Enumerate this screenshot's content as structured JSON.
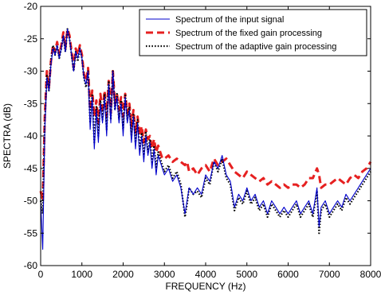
{
  "chart_data": {
    "type": "line",
    "title": "",
    "xlabel": "FREQUENCY (Hz)",
    "ylabel": "SPECTRA (dB)",
    "xlim": [
      0,
      8000
    ],
    "ylim": [
      -60,
      -20
    ],
    "x_ticks": [
      0,
      1000,
      2000,
      3000,
      4000,
      5000,
      6000,
      7000,
      8000
    ],
    "y_ticks": [
      -60,
      -55,
      -50,
      -45,
      -40,
      -35,
      -30,
      -25,
      -20
    ],
    "x_tick_labels": [
      "0",
      "1000",
      "2000",
      "3000",
      "4000",
      "5000",
      "6000",
      "7000",
      "8000"
    ],
    "y_tick_labels": [
      "-60",
      "-55",
      "-50",
      "-45",
      "-40",
      "-35",
      "-30",
      "-25",
      "-20"
    ],
    "grid": false,
    "legend_position": "top-right",
    "series": [
      {
        "name": "Spectrum of the input signal",
        "color": "#0000cc",
        "style": "solid",
        "x": [
          0,
          50,
          100,
          150,
          200,
          250,
          300,
          350,
          400,
          450,
          500,
          550,
          600,
          650,
          700,
          750,
          800,
          850,
          900,
          950,
          1000,
          1050,
          1100,
          1150,
          1200,
          1250,
          1300,
          1350,
          1400,
          1450,
          1500,
          1550,
          1600,
          1650,
          1700,
          1750,
          1800,
          1850,
          1900,
          1950,
          2000,
          2050,
          2100,
          2150,
          2200,
          2250,
          2300,
          2350,
          2400,
          2450,
          2500,
          2550,
          2600,
          2650,
          2700,
          2750,
          2800,
          2850,
          2900,
          2950,
          3000,
          3100,
          3200,
          3300,
          3400,
          3500,
          3550,
          3600,
          3700,
          3800,
          3900,
          4000,
          4100,
          4200,
          4300,
          4400,
          4500,
          4600,
          4700,
          4800,
          4900,
          5000,
          5100,
          5200,
          5300,
          5400,
          5500,
          5600,
          5700,
          5800,
          5900,
          6000,
          6100,
          6200,
          6300,
          6400,
          6500,
          6600,
          6700,
          6750,
          6800,
          6900,
          7000,
          7100,
          7200,
          7300,
          7400,
          7500,
          7600,
          7700,
          7800,
          7900,
          8000
        ],
        "y": [
          -50,
          -57.5,
          -39,
          -31,
          -33,
          -29,
          -26.5,
          -27.5,
          -26,
          -28,
          -26.5,
          -24.5,
          -27,
          -23.5,
          -25,
          -27.5,
          -30,
          -27,
          -28,
          -26.5,
          -28,
          -31,
          -32,
          -30,
          -39,
          -34,
          -42,
          -36,
          -41,
          -35,
          -38,
          -34,
          -40,
          -32,
          -38,
          -30,
          -36,
          -34,
          -38,
          -35,
          -40,
          -34,
          -38,
          -36,
          -41,
          -37,
          -42,
          -38,
          -43,
          -40,
          -44,
          -40,
          -43,
          -41,
          -45,
          -42,
          -46,
          -43,
          -44,
          -45,
          -46,
          -45,
          -47,
          -46,
          -48,
          -52,
          -50,
          -48,
          -49,
          -48,
          -49,
          -46,
          -47,
          -44,
          -45,
          -43,
          -46,
          -47,
          -51,
          -49,
          -50,
          -48,
          -50,
          -49,
          -51,
          -50,
          -52,
          -50,
          -51,
          -52,
          -51,
          -52,
          -51,
          -50,
          -52,
          -51,
          -50,
          -52,
          -48,
          -54,
          -51,
          -50,
          -52,
          -51,
          -50,
          -51,
          -49,
          -50,
          -49,
          -48,
          -47,
          -46,
          -45
        ]
      },
      {
        "name": "Spectrum of the fixed gain processing",
        "color": "#e62020",
        "style": "dashed",
        "x": [
          0,
          50,
          100,
          150,
          200,
          250,
          300,
          350,
          400,
          450,
          500,
          550,
          600,
          650,
          700,
          750,
          800,
          850,
          900,
          950,
          1000,
          1050,
          1100,
          1150,
          1200,
          1250,
          1300,
          1350,
          1400,
          1450,
          1500,
          1550,
          1600,
          1650,
          1700,
          1750,
          1800,
          1850,
          1900,
          1950,
          2000,
          2050,
          2100,
          2150,
          2200,
          2250,
          2300,
          2350,
          2400,
          2450,
          2500,
          2550,
          2600,
          2650,
          2700,
          2750,
          2800,
          2850,
          2900,
          2950,
          3000,
          3100,
          3200,
          3300,
          3400,
          3500,
          3550,
          3600,
          3700,
          3800,
          3900,
          4000,
          4100,
          4200,
          4300,
          4400,
          4500,
          4600,
          4700,
          4800,
          4900,
          5000,
          5100,
          5200,
          5300,
          5400,
          5500,
          5600,
          5700,
          5800,
          5900,
          6000,
          6100,
          6200,
          6300,
          6400,
          6500,
          6600,
          6700,
          6750,
          6800,
          6900,
          7000,
          7100,
          7200,
          7300,
          7400,
          7500,
          7600,
          7700,
          7800,
          7900,
          8000
        ],
        "y": [
          -48.5,
          -50,
          -37,
          -30,
          -32.5,
          -28.5,
          -26,
          -27,
          -25.5,
          -27.5,
          -26,
          -24,
          -26.5,
          -23.5,
          -24.5,
          -27,
          -29.5,
          -26.5,
          -27.5,
          -26,
          -27.5,
          -30.5,
          -31.5,
          -29.5,
          -36,
          -33,
          -37,
          -34.5,
          -38,
          -33.5,
          -36.5,
          -33,
          -37,
          -31.5,
          -36.5,
          -30,
          -35,
          -33.5,
          -36,
          -34,
          -37,
          -33.5,
          -36.5,
          -35,
          -38.5,
          -36,
          -39.5,
          -37,
          -40,
          -38.5,
          -41,
          -39,
          -40.5,
          -40,
          -42,
          -40.5,
          -42.5,
          -41.5,
          -42.5,
          -43.5,
          -43.5,
          -43,
          -44,
          -43.5,
          -44,
          -44.5,
          -44,
          -45.5,
          -45,
          -46,
          -45,
          -44.5,
          -45.5,
          -43.5,
          -44.5,
          -44,
          -43.5,
          -44.5,
          -45.5,
          -46,
          -46.5,
          -45.5,
          -46,
          -46.5,
          -47,
          -46.5,
          -47.5,
          -47,
          -47.5,
          -48,
          -47.5,
          -48,
          -47.5,
          -47.5,
          -48,
          -47.5,
          -46.5,
          -46.5,
          -45,
          -46,
          -48,
          -47.5,
          -47.5,
          -47,
          -46.5,
          -47,
          -47.5,
          -46.5,
          -46,
          -46.5,
          -45.5,
          -45,
          -44
        ]
      },
      {
        "name": "Spectrum of the adaptive gain processing",
        "color": "#000000",
        "style": "dotted",
        "x": [
          0,
          50,
          100,
          150,
          200,
          250,
          300,
          350,
          400,
          450,
          500,
          550,
          600,
          650,
          700,
          750,
          800,
          850,
          900,
          950,
          1000,
          1050,
          1100,
          1150,
          1200,
          1250,
          1300,
          1350,
          1400,
          1450,
          1500,
          1550,
          1600,
          1650,
          1700,
          1750,
          1800,
          1850,
          1900,
          1950,
          2000,
          2050,
          2100,
          2150,
          2200,
          2250,
          2300,
          2350,
          2400,
          2450,
          2500,
          2550,
          2600,
          2650,
          2700,
          2750,
          2800,
          2850,
          2900,
          2950,
          3000,
          3100,
          3200,
          3300,
          3400,
          3500,
          3550,
          3600,
          3700,
          3800,
          3900,
          4000,
          4100,
          4200,
          4300,
          4400,
          4500,
          4600,
          4700,
          4800,
          4900,
          5000,
          5100,
          5200,
          5300,
          5400,
          5500,
          5600,
          5700,
          5800,
          5900,
          6000,
          6100,
          6200,
          6300,
          6400,
          6500,
          6600,
          6700,
          6750,
          6800,
          6900,
          7000,
          7100,
          7200,
          7300,
          7400,
          7500,
          7600,
          7700,
          7800,
          7900,
          8000
        ],
        "y": [
          -50,
          -52,
          -38,
          -30.5,
          -33,
          -28.5,
          -26,
          -27.5,
          -26,
          -28,
          -26.5,
          -24.5,
          -27,
          -23.5,
          -25,
          -27.5,
          -30,
          -27,
          -28.5,
          -26.5,
          -28,
          -31,
          -32.5,
          -30,
          -38,
          -33.5,
          -41,
          -35.5,
          -40,
          -34.5,
          -37.5,
          -33.5,
          -39,
          -31.5,
          -37.5,
          -30,
          -36,
          -33.5,
          -37.5,
          -34.5,
          -39,
          -33.5,
          -37.5,
          -35.5,
          -40,
          -36.5,
          -41,
          -37.5,
          -42,
          -39.5,
          -43,
          -39.5,
          -42.5,
          -40.5,
          -44,
          -41.5,
          -45,
          -42.5,
          -43.5,
          -44.5,
          -45.5,
          -44.5,
          -46.5,
          -45.5,
          -47.5,
          -52.5,
          -50.5,
          -48,
          -49,
          -48.5,
          -49.5,
          -46.5,
          -47.5,
          -44,
          -45.5,
          -43.5,
          -46.5,
          -47.5,
          -51.5,
          -49.5,
          -50.5,
          -48.5,
          -50.5,
          -49.5,
          -51.5,
          -50.5,
          -52.5,
          -50.5,
          -51.5,
          -52.5,
          -51.5,
          -52.5,
          -51.5,
          -50.5,
          -52.5,
          -51.5,
          -50.5,
          -52.5,
          -48.5,
          -55,
          -51.5,
          -50.5,
          -52.5,
          -51.5,
          -50.5,
          -51.5,
          -49.5,
          -50.5,
          -49.5,
          -48.5,
          -47.5,
          -46.5,
          -45.5
        ]
      }
    ]
  }
}
